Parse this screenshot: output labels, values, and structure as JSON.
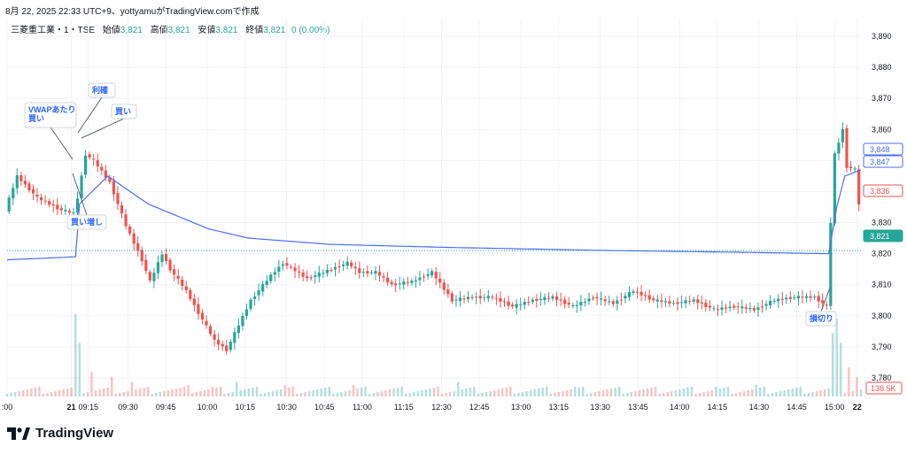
{
  "header": {
    "timestamp_line": "8月 22, 2025 22:33 UTC+9、yottyamuがTradingView.comで作成"
  },
  "legend": {
    "symbol": "三菱重工業・1・TSE",
    "open_label": "始値",
    "open_value": "3,821",
    "high_label": "高値",
    "high_value": "3,821",
    "low_label": "安値",
    "low_value": "3,821",
    "close_label": "終値",
    "close_value": "3,821",
    "change": "0 (0.00%)"
  },
  "brand": {
    "name": "TradingView"
  },
  "colors": {
    "up": "#26a69a",
    "down": "#ef5350",
    "vwap": "#4a6cf7",
    "grid": "#f0f3fa",
    "axis_text": "#131722",
    "last_line": "#26a69a"
  },
  "chart_data": {
    "type": "candlestick",
    "timeframe": "1",
    "ylim": [
      3774,
      3896
    ],
    "y_ticks": [
      3890,
      3880,
      3870,
      3860,
      3850,
      3840,
      3830,
      3820,
      3810,
      3800,
      3790,
      3780
    ],
    "y_tick_labels": [
      "3,890",
      "3,880",
      "3,870",
      "3,860",
      "3,850",
      "3,840",
      "3,830",
      "3,820",
      "3,810",
      "3,800",
      "3,790",
      "3,780"
    ],
    "x_tick_labels": [
      ":00",
      "21",
      "09:15",
      "09:30",
      "09:45",
      "10:00",
      "10:15",
      "10:30",
      "10:45",
      "11:00",
      "11:15",
      "12:30",
      "12:45",
      "13:00",
      "13:15",
      "13:30",
      "13:45",
      "14:00",
      "14:15",
      "14:30",
      "14:45",
      "15:00",
      "22"
    ],
    "price_path": [
      [
        0,
        3834
      ],
      [
        3,
        3845
      ],
      [
        8,
        3838
      ],
      [
        14,
        3834
      ],
      [
        17,
        3833
      ],
      [
        18,
        3838
      ],
      [
        20,
        3852
      ],
      [
        22,
        3850
      ],
      [
        26,
        3843
      ],
      [
        30,
        3829
      ],
      [
        34,
        3818
      ],
      [
        36,
        3811
      ],
      [
        39,
        3820
      ],
      [
        41,
        3815
      ],
      [
        45,
        3808
      ],
      [
        48,
        3801
      ],
      [
        52,
        3792
      ],
      [
        55,
        3789
      ],
      [
        58,
        3797
      ],
      [
        61,
        3805
      ],
      [
        66,
        3813
      ],
      [
        69,
        3817
      ],
      [
        75,
        3812
      ],
      [
        81,
        3815
      ],
      [
        85,
        3817
      ],
      [
        88,
        3814
      ],
      [
        92,
        3814
      ],
      [
        96,
        3810
      ],
      [
        101,
        3811
      ],
      [
        106,
        3814
      ],
      [
        111,
        3805
      ],
      [
        116,
        3806
      ],
      [
        121,
        3806
      ],
      [
        126,
        3803
      ],
      [
        131,
        3805
      ],
      [
        136,
        3806
      ],
      [
        141,
        3803
      ],
      [
        146,
        3806
      ],
      [
        151,
        3804
      ],
      [
        156,
        3808
      ],
      [
        161,
        3805
      ],
      [
        166,
        3804
      ],
      [
        171,
        3805
      ],
      [
        176,
        3802
      ],
      [
        181,
        3803
      ],
      [
        186,
        3802
      ],
      [
        191,
        3805
      ],
      [
        196,
        3806
      ],
      [
        201,
        3806
      ],
      [
        204,
        3803
      ],
      [
        205,
        3830
      ],
      [
        206,
        3852
      ],
      [
        208,
        3860
      ],
      [
        209,
        3848
      ],
      [
        211,
        3847
      ],
      [
        212,
        3836
      ]
    ],
    "vwap_path": [
      [
        0,
        3818
      ],
      [
        17,
        3819
      ],
      [
        18,
        3836
      ],
      [
        25,
        3845
      ],
      [
        35,
        3836
      ],
      [
        50,
        3828
      ],
      [
        60,
        3825
      ],
      [
        80,
        3823
      ],
      [
        110,
        3822
      ],
      [
        150,
        3821
      ],
      [
        180,
        3820.5
      ],
      [
        204,
        3820
      ],
      [
        206,
        3835
      ],
      [
        208,
        3845
      ],
      [
        212,
        3847
      ]
    ],
    "price_labels": [
      {
        "text": "3,848",
        "value": 3848,
        "color": "#4a6cf7"
      },
      {
        "text": "3,847",
        "value": 3847,
        "color": "#4a6cf7"
      },
      {
        "text": "3,836",
        "value": 3836,
        "color": "#ef5350"
      },
      {
        "text": "3,821",
        "value": 3821,
        "color": "#26a69a"
      }
    ],
    "volume_label": "138.5K",
    "volume_spikes": [
      [
        17,
        0.85
      ],
      [
        18,
        0.55
      ],
      [
        21,
        0.25
      ],
      [
        26,
        0.2
      ],
      [
        31,
        0.15
      ],
      [
        45,
        0.12
      ],
      [
        51,
        0.1
      ],
      [
        57,
        0.15
      ],
      [
        69,
        0.12
      ],
      [
        86,
        0.12
      ],
      [
        112,
        0.15
      ],
      [
        141,
        0.1
      ],
      [
        176,
        0.1
      ],
      [
        186,
        0.12
      ],
      [
        205,
        0.65
      ],
      [
        206,
        0.8
      ],
      [
        207,
        0.55
      ],
      [
        209,
        0.3
      ],
      [
        211,
        0.2
      ]
    ],
    "annotations": [
      {
        "text": "利確"
      },
      {
        "text": "VWAPあたり\n買い"
      },
      {
        "text": "買い"
      },
      {
        "text": "買い増し"
      },
      {
        "text": "損切り"
      }
    ]
  }
}
